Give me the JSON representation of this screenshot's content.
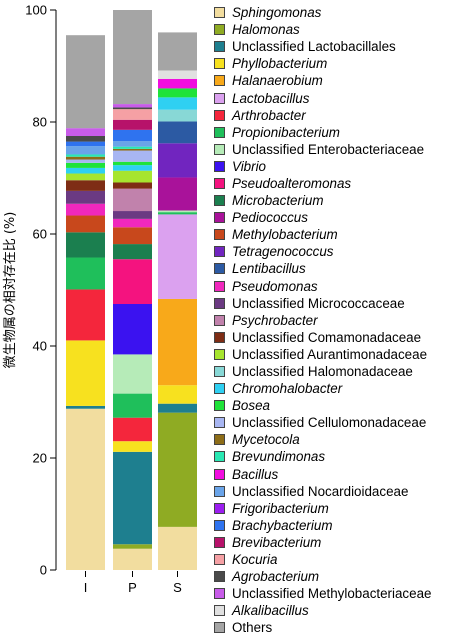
{
  "chart_data": {
    "type": "bar",
    "stacked": true,
    "categories": [
      "I",
      "P",
      "S"
    ],
    "ylabel": "微生物属の相対存在比 (%)",
    "ylim": [
      0,
      100
    ],
    "yticks": [
      0,
      20,
      40,
      60,
      80,
      100
    ],
    "legend_position": "right",
    "series": [
      {
        "name": "Sphingomonas",
        "italic": true,
        "color": "#f2dd9f",
        "values": [
          28.8,
          3.8,
          7.7
        ]
      },
      {
        "name": "Halomonas",
        "italic": true,
        "color": "#8fab23",
        "values": [
          0,
          0.8,
          20.4
        ]
      },
      {
        "name": "Unclassified Lactobacillales",
        "italic": false,
        "color": "#1e7f8f",
        "values": [
          0.5,
          16.5,
          1.6
        ]
      },
      {
        "name": "Phyllobacterium",
        "italic": true,
        "color": "#f7e11f",
        "values": [
          11.7,
          1.9,
          3.3
        ]
      },
      {
        "name": "Halanaerobium",
        "italic": true,
        "color": "#f8a91a",
        "values": [
          0,
          0,
          15.4
        ]
      },
      {
        "name": "Lactobacillus",
        "italic": true,
        "color": "#dba1ef",
        "values": [
          0,
          0,
          15.1
        ]
      },
      {
        "name": "Arthrobacter",
        "italic": true,
        "color": "#f4263c",
        "values": [
          9.1,
          4.2,
          0
        ]
      },
      {
        "name": "Propionibacterium",
        "italic": true,
        "color": "#1fbf5b",
        "values": [
          5.7,
          4.3,
          0.4
        ]
      },
      {
        "name": "Unclassified Enterobacteriaceae",
        "italic": false,
        "color": "#b6ebb8",
        "values": [
          0,
          7.0,
          0.3
        ]
      },
      {
        "name": "Vibrio",
        "italic": true,
        "color": "#3b12f0",
        "values": [
          0,
          9.0,
          0
        ]
      },
      {
        "name": "Pseudoalteromonas",
        "italic": true,
        "color": "#f4137f",
        "values": [
          0,
          8.0,
          0
        ]
      },
      {
        "name": "Microbacterium",
        "italic": true,
        "color": "#1b7f4f",
        "values": [
          4.5,
          2.7,
          0
        ]
      },
      {
        "name": "Pediococcus",
        "italic": true,
        "color": "#a9129a",
        "values": [
          0,
          0,
          5.9
        ]
      },
      {
        "name": "Methylobacterium",
        "italic": true,
        "color": "#c8481c",
        "values": [
          3.0,
          3.0,
          0
        ]
      },
      {
        "name": "Tetragenococcus",
        "italic": true,
        "color": "#7125bf",
        "values": [
          0,
          0,
          6.1
        ]
      },
      {
        "name": "Lentibacillus",
        "italic": true,
        "color": "#2c5aa3",
        "values": [
          0,
          0,
          3.9
        ]
      },
      {
        "name": "Pseudomonas",
        "italic": true,
        "color": "#f028bd",
        "values": [
          2.1,
          1.5,
          0
        ]
      },
      {
        "name": "Unclassified Micrococcaceae",
        "italic": false,
        "color": "#6b3a82",
        "values": [
          2.3,
          1.4,
          0
        ]
      },
      {
        "name": "Psychrobacter",
        "italic": true,
        "color": "#c182ac",
        "values": [
          0,
          4.0,
          0
        ]
      },
      {
        "name": "Unclassified Comamonadaceae",
        "italic": false,
        "color": "#7e2d15",
        "values": [
          1.9,
          1.1,
          0
        ]
      },
      {
        "name": "Unclassified Aurantimonadaceae",
        "italic": false,
        "color": "#a7e52f",
        "values": [
          1.2,
          2.1,
          0
        ]
      },
      {
        "name": "Unclassified Halomonadaceae",
        "italic": false,
        "color": "#88d8d6",
        "values": [
          0,
          0,
          2.1
        ]
      },
      {
        "name": "Chromohalobacter",
        "italic": true,
        "color": "#2fd0f2",
        "values": [
          1.0,
          1.0,
          2.2
        ]
      },
      {
        "name": "Bosea",
        "italic": true,
        "color": "#1fe33a",
        "values": [
          0.9,
          0.6,
          1.6
        ]
      },
      {
        "name": "Unclassified Cellulomonadaceae",
        "italic": false,
        "color": "#a8b6f2",
        "values": [
          0.6,
          2.0,
          0
        ]
      },
      {
        "name": "Mycetocola",
        "italic": true,
        "color": "#8d6d18",
        "values": [
          0.5,
          0.3,
          0
        ]
      },
      {
        "name": "Brevundimonas",
        "italic": true,
        "color": "#29e8b3",
        "values": [
          0.4,
          0.4,
          0
        ]
      },
      {
        "name": "Bacillus",
        "italic": true,
        "color": "#f10ddf",
        "values": [
          0,
          0,
          1.7
        ]
      },
      {
        "name": "Unclassified Nocardioidaceae",
        "italic": false,
        "color": "#6aa4e9",
        "values": [
          1.5,
          1.0,
          0
        ]
      },
      {
        "name": "Frigoribacterium",
        "italic": true,
        "color": "#9c1ef0",
        "values": [
          0,
          0,
          0
        ]
      },
      {
        "name": "Brachybacterium",
        "italic": true,
        "color": "#2f73ef",
        "values": [
          0.8,
          2.0,
          0
        ]
      },
      {
        "name": "Brevibacterium",
        "italic": true,
        "color": "#b7126a",
        "values": [
          0,
          1.8,
          0
        ]
      },
      {
        "name": "Kocuria",
        "italic": true,
        "color": "#f5a0a4",
        "values": [
          0,
          1.9,
          0
        ]
      },
      {
        "name": "Agrobacterium",
        "italic": true,
        "color": "#4a4a4a",
        "values": [
          1.0,
          0.3,
          0
        ]
      },
      {
        "name": "Unclassified Methylobacteriaceae",
        "italic": false,
        "color": "#c85ce9",
        "values": [
          1.4,
          0.6,
          0
        ]
      },
      {
        "name": "Alkalibacillus",
        "italic": true,
        "color": "#e0e0e0",
        "values": [
          0,
          0,
          1.5
        ]
      },
      {
        "name": "Others",
        "italic": false,
        "color": "#a5a5a5",
        "values": [
          16.6,
          16.8,
          6.8
        ]
      }
    ]
  }
}
